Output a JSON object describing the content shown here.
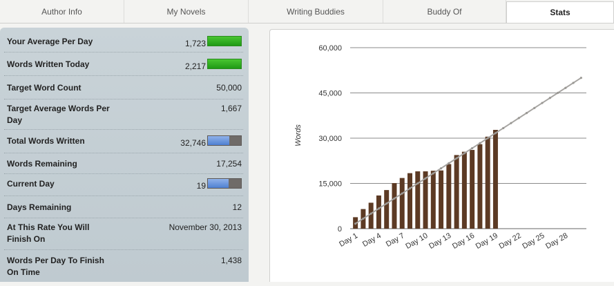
{
  "tabs": [
    {
      "label": "Author Info"
    },
    {
      "label": "My Novels"
    },
    {
      "label": "Writing Buddies"
    },
    {
      "label": "Buddy Of"
    },
    {
      "label": "Stats"
    }
  ],
  "active_tab": "Stats",
  "stats": [
    {
      "label": "Your Average Per Day",
      "value": "1,723",
      "bar": {
        "type": "green",
        "fraction": 1.0
      }
    },
    {
      "label": "Words Written Today",
      "value": "2,217",
      "bar": {
        "type": "green",
        "fraction": 1.0
      }
    },
    {
      "label": "Target Word Count",
      "value": "50,000"
    },
    {
      "label": "Target Average Words Per Day",
      "value": "1,667"
    },
    {
      "label": "Total Words Written",
      "value": "32,746",
      "bar": {
        "type": "split",
        "fraction": 0.65
      }
    },
    {
      "label": "Words Remaining",
      "value": "17,254"
    },
    {
      "label": "Current Day",
      "value": "19",
      "bar": {
        "type": "split",
        "fraction": 0.63
      }
    },
    {
      "label": "Days Remaining",
      "value": "12"
    },
    {
      "label": "At This Rate You Will Finish On",
      "value": "November 30, 2013"
    },
    {
      "label": "Words Per Day To Finish On Time",
      "value": "1,438"
    }
  ],
  "colors": {
    "bars": "#5c3a24",
    "target_line": "#a7a5a2",
    "green_bar": "#2fae20",
    "blue_fill": "#5a88d6",
    "gray_remaining": "#6f6b68"
  },
  "chart_data": {
    "type": "bar",
    "title": "",
    "xlabel": "",
    "ylabel": "Words",
    "ylim": [
      0,
      60000
    ],
    "yticks": [
      "60,000",
      "45,000",
      "30,000",
      "15,000",
      "0"
    ],
    "ytick_values": [
      60000,
      45000,
      30000,
      15000,
      0
    ],
    "days": 30,
    "x_tick_labels": [
      "Day 1",
      "Day 4",
      "Day 7",
      "Day 10",
      "Day 13",
      "Day 16",
      "Day 19",
      "Day 22",
      "Day 25",
      "Day 28"
    ],
    "x_tick_days": [
      1,
      4,
      7,
      10,
      13,
      16,
      19,
      22,
      25,
      28
    ],
    "series": [
      {
        "values": [
          3800,
          6500,
          8600,
          11000,
          12800,
          15100,
          16800,
          18400,
          19000,
          19000,
          19200,
          19300,
          21400,
          24400,
          25500,
          26100,
          28000,
          30500,
          32746
        ]
      },
      {
        "type": "line",
        "values": [
          1667,
          3333,
          5000,
          6667,
          8333,
          10000,
          11667,
          13333,
          15000,
          16667,
          18333,
          20000,
          21667,
          23333,
          25000,
          26667,
          28333,
          30000,
          31667,
          33333,
          35000,
          36667,
          38333,
          40000,
          41667,
          43333,
          45000,
          46667,
          48333,
          50000
        ]
      }
    ]
  }
}
